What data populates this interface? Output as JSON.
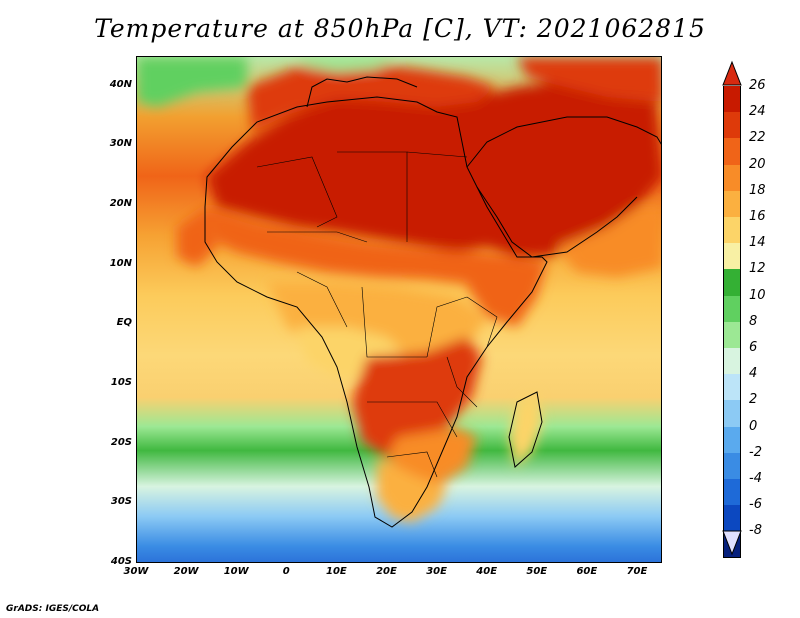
{
  "title": "Temperature at 850hPa [C], VT: 2021062815",
  "credit": "GrADS: IGES/COLA",
  "map": {
    "lat_labels": [
      "40N",
      "30N",
      "20N",
      "10N",
      "EQ",
      "10S",
      "20S",
      "30S",
      "40S"
    ],
    "lon_labels": [
      "30W",
      "20W",
      "10W",
      "0",
      "10E",
      "20E",
      "30E",
      "40E",
      "50E",
      "60E",
      "70E"
    ]
  },
  "colorbar": {
    "labels": [
      "26",
      "24",
      "22",
      "20",
      "18",
      "16",
      "14",
      "12",
      "10",
      "8",
      "6",
      "4",
      "2",
      "0",
      "-2",
      "-4",
      "-6",
      "-8"
    ],
    "colors": [
      "#c81a00",
      "#de3a0a",
      "#f06418",
      "#f88c28",
      "#fbb040",
      "#fcd468",
      "#f8f0a4",
      "#34b034",
      "#60d060",
      "#9ce894",
      "#d8f4e0",
      "#bce4f8",
      "#8ccaf4",
      "#5aaaee",
      "#3a8ce4",
      "#1e6ad8",
      "#0c48c0",
      "#06207c"
    ],
    "over_color": "#d82a10",
    "under_color": "#e0e0ff"
  },
  "fields": {
    "ocean_gradient": [
      {
        "lat": 45,
        "color": "#b8e8a8"
      },
      {
        "lat": 35,
        "color": "#f2a030"
      },
      {
        "lat": 25,
        "color": "#f06418"
      },
      {
        "lat": 15,
        "color": "#f6a233"
      },
      {
        "lat": 5,
        "color": "#fccb5b"
      },
      {
        "lat": -5,
        "color": "#fcd878"
      },
      {
        "lat": -12,
        "color": "#fad070"
      },
      {
        "lat": -17,
        "color": "#9ce894"
      },
      {
        "lat": -21,
        "color": "#40b840"
      },
      {
        "lat": -27,
        "color": "#d8f4e0"
      },
      {
        "lat": -32,
        "color": "#8ccaf4"
      },
      {
        "lat": -37,
        "color": "#3a8ce4"
      },
      {
        "lat": -40,
        "color": "#2a70d8"
      }
    ]
  }
}
